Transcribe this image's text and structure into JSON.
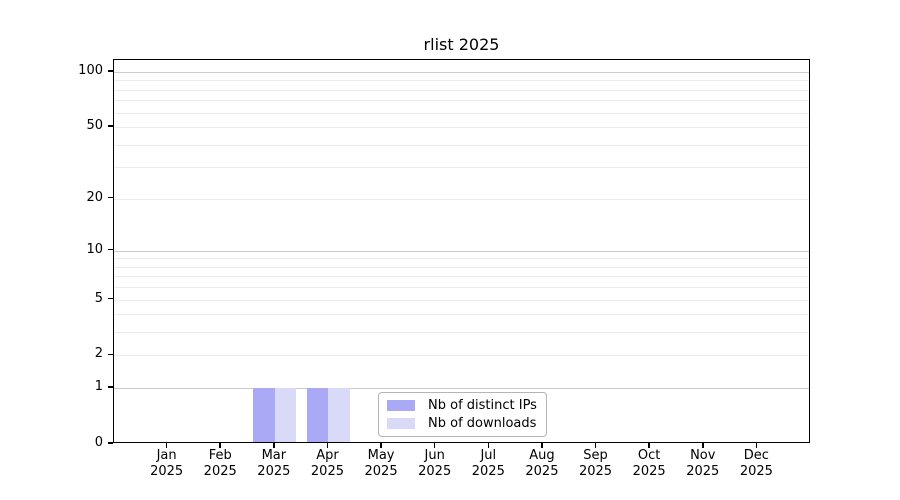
{
  "chart_data": {
    "type": "bar",
    "title": "rlist 2025",
    "x": {
      "labels": [
        "Jan",
        "Feb",
        "Mar",
        "Apr",
        "May",
        "Jun",
        "Jul",
        "Aug",
        "Sep",
        "Oct",
        "Nov",
        "Dec"
      ],
      "year": "2025"
    },
    "y_axis": {
      "scale": "log1p",
      "ticks": [
        0,
        1,
        2,
        5,
        10,
        20,
        50,
        100
      ],
      "grid_major": [
        1,
        10,
        100
      ],
      "grid_minor": [
        2,
        3,
        4,
        5,
        6,
        7,
        8,
        9,
        20,
        30,
        40,
        50,
        60,
        70,
        80,
        90
      ],
      "range_max": 100,
      "grid": true
    },
    "series": [
      {
        "name": "Nb of distinct IPs",
        "color": "#a9a9f5",
        "values": [
          0,
          0,
          1,
          1,
          0,
          0,
          0,
          0,
          0,
          0,
          0,
          0
        ]
      },
      {
        "name": "Nb of downloads",
        "color": "#d9d9f8",
        "values": [
          0,
          0,
          1,
          1,
          0,
          0,
          0,
          0,
          0,
          0,
          0,
          0
        ]
      }
    ],
    "legend": {
      "position": "bottom-center"
    },
    "colors": {
      "grid_minor": "#ececec",
      "grid_major": "#cccccc",
      "axis": "#000000",
      "legend_border": "#b5b5b5",
      "background": "#ffffff"
    }
  }
}
